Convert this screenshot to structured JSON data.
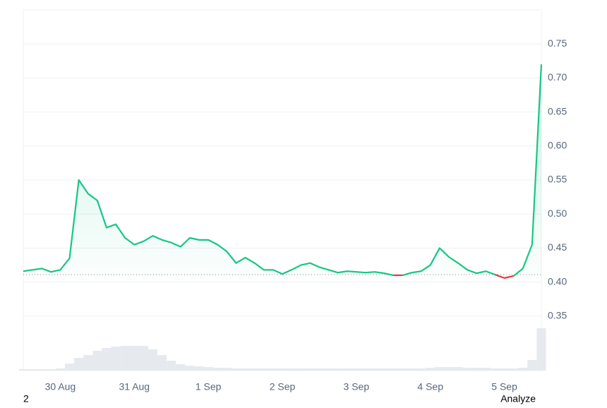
{
  "chart_data": {
    "type": "line",
    "categories": [
      null,
      null,
      null,
      null,
      "30 Aug",
      null,
      null,
      null,
      null,
      null,
      null,
      null,
      "31 Aug",
      null,
      null,
      null,
      null,
      null,
      null,
      null,
      "1 Sep",
      null,
      null,
      null,
      null,
      null,
      null,
      null,
      "2 Sep",
      null,
      null,
      null,
      null,
      null,
      null,
      null,
      "3 Sep",
      null,
      null,
      null,
      null,
      null,
      null,
      null,
      "4 Sep",
      null,
      null,
      null,
      null,
      null,
      null,
      null,
      "5 Sep",
      null,
      null,
      null,
      null
    ],
    "values": [
      0.416,
      0.418,
      0.42,
      0.415,
      0.418,
      0.435,
      0.55,
      0.53,
      0.52,
      0.48,
      0.485,
      0.465,
      0.455,
      0.46,
      0.468,
      0.462,
      0.458,
      0.452,
      0.465,
      0.462,
      0.462,
      0.455,
      0.445,
      0.428,
      0.436,
      0.428,
      0.418,
      0.418,
      0.412,
      0.418,
      0.425,
      0.428,
      0.422,
      0.418,
      0.414,
      0.416,
      0.415,
      0.414,
      0.415,
      0.413,
      0.41,
      0.41,
      0.414,
      0.416,
      0.425,
      0.45,
      0.437,
      0.428,
      0.418,
      0.413,
      0.416,
      0.411,
      0.406,
      0.409,
      0.42,
      0.455,
      0.72
    ],
    "volume": [
      2,
      2,
      2,
      2,
      3,
      10,
      18,
      22,
      28,
      32,
      34,
      35,
      35,
      35,
      30,
      22,
      14,
      9,
      7,
      6,
      5,
      4,
      4,
      3,
      3,
      3,
      3,
      3,
      3,
      3,
      3,
      3,
      3,
      3,
      3,
      3,
      3,
      3,
      3,
      3,
      3,
      3,
      3,
      3,
      4,
      5,
      5,
      5,
      4,
      4,
      4,
      3,
      3,
      3,
      4,
      15,
      60
    ],
    "baseline": 0.411,
    "up_color": "#16c784",
    "down_color": "#ea3943",
    "volume_color": "#e6e9ee",
    "ylim": [
      0.27,
      0.8
    ],
    "yticks": [
      0.35,
      {
        "value": 0.4,
        "label": "0.40"
      },
      0.45,
      {
        "value": 0.5,
        "label": "0.50"
      },
      0.55,
      {
        "value": 0.6,
        "label": "0.60"
      },
      0.65,
      {
        "value": 0.7,
        "label": "0.70"
      },
      0.75
    ],
    "grid": true
  },
  "footer": {
    "left": "2",
    "right": "Analyze"
  }
}
